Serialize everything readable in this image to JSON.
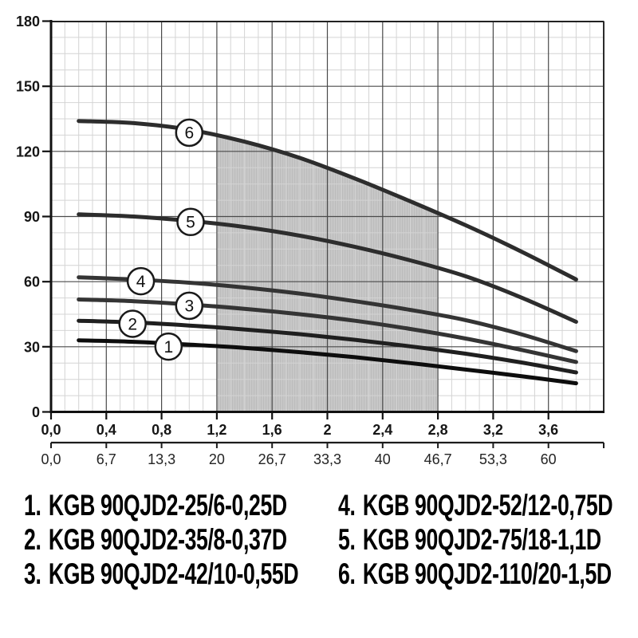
{
  "chart_data": {
    "type": "line",
    "y_axis": {
      "range": [
        0,
        180
      ],
      "major_step": 30,
      "minor_step": 7.5,
      "tick_labels": [
        "0",
        "30",
        "60",
        "90",
        "120",
        "150",
        "180"
      ],
      "tick_values": [
        0,
        30,
        60,
        90,
        120,
        150,
        180
      ]
    },
    "x_axis": {
      "range": [
        0,
        4
      ],
      "major_step": 0.4,
      "minor_step": 0.1,
      "tick_labels": [
        "0,0",
        "0,4",
        "0,8",
        "1,2",
        "1,6",
        "2",
        "2,4",
        "2,8",
        "3,2",
        "3,6"
      ],
      "tick_values": [
        0,
        0.4,
        0.8,
        1.2,
        1.6,
        2.0,
        2.4,
        2.8,
        3.2,
        3.6
      ]
    },
    "x_axis_secondary": {
      "tick_labels": [
        "0,0",
        "6,7",
        "13,3",
        "20",
        "26,7",
        "33,3",
        "40",
        "46,7",
        "53,3",
        "60"
      ],
      "tick_values": [
        0,
        0.4,
        0.8,
        1.2,
        1.6,
        2.0,
        2.4,
        2.8,
        3.2,
        3.6
      ]
    },
    "grid": {
      "major_color": "#4a4a4a",
      "minor_color": "#d4d4d4"
    },
    "shaded_region": {
      "x_from": 1.2,
      "x_to": 2.8,
      "top_boundary": "series 6",
      "fill": "#c8c8c8",
      "hatch": "#bcbcbc"
    },
    "series": [
      {
        "curve": "1",
        "model": "KGB 90QJD2-25/6-0,25D",
        "color": "#0d0d0d",
        "marker": {
          "x": 0.85,
          "y": 30.1
        },
        "points": [
          [
            0.2,
            33
          ],
          [
            0.6,
            32.3
          ],
          [
            1.0,
            31
          ],
          [
            1.4,
            29.5
          ],
          [
            1.8,
            27.5
          ],
          [
            2.2,
            25.2
          ],
          [
            2.6,
            22.5
          ],
          [
            3.0,
            19.5
          ],
          [
            3.4,
            16.5
          ],
          [
            3.8,
            13.2
          ]
        ]
      },
      {
        "curve": "2",
        "model": "KGB 90QJD2-35/8-0,37D",
        "color": "#1f1f1f",
        "marker": {
          "x": 0.59,
          "y": 40.6
        },
        "points": [
          [
            0.2,
            42
          ],
          [
            0.6,
            41.2
          ],
          [
            1.0,
            39.8
          ],
          [
            1.4,
            38
          ],
          [
            1.8,
            35.8
          ],
          [
            2.2,
            33.2
          ],
          [
            2.6,
            30.2
          ],
          [
            3.0,
            26.8
          ],
          [
            3.4,
            22.8
          ],
          [
            3.8,
            18.2
          ]
        ]
      },
      {
        "curve": "3",
        "model": "KGB 90QJD2-42/10-0,55D",
        "color": "#343434",
        "marker": {
          "x": 1.0,
          "y": 48.9
        },
        "points": [
          [
            0.2,
            51.8
          ],
          [
            0.6,
            51
          ],
          [
            1.0,
            49.5
          ],
          [
            1.4,
            47.5
          ],
          [
            1.8,
            45
          ],
          [
            2.2,
            42
          ],
          [
            2.6,
            38.2
          ],
          [
            3.0,
            33.8
          ],
          [
            3.4,
            28.6
          ],
          [
            3.8,
            23
          ]
        ]
      },
      {
        "curve": "4",
        "model": "KGB 90QJD2-52/12-0,75D",
        "color": "#343434",
        "marker": {
          "x": 0.65,
          "y": 60.2
        },
        "points": [
          [
            0.2,
            62
          ],
          [
            0.6,
            61
          ],
          [
            1.0,
            59.5
          ],
          [
            1.4,
            57.3
          ],
          [
            1.8,
            54.5
          ],
          [
            2.2,
            51
          ],
          [
            2.6,
            47
          ],
          [
            3.0,
            42.3
          ],
          [
            3.4,
            35.8
          ],
          [
            3.8,
            28
          ]
        ]
      },
      {
        "curve": "5",
        "model": "KGB 90QJD2-75/18-1,1D",
        "color": "#2d2d2d",
        "marker": {
          "x": 1.01,
          "y": 87.5
        },
        "points": [
          [
            0.2,
            91
          ],
          [
            0.6,
            90
          ],
          [
            1.0,
            88
          ],
          [
            1.4,
            85.2
          ],
          [
            1.8,
            81.2
          ],
          [
            2.2,
            76
          ],
          [
            2.6,
            69.8
          ],
          [
            3.0,
            62.5
          ],
          [
            3.4,
            52.8
          ],
          [
            3.8,
            41.5
          ]
        ]
      },
      {
        "curve": "6",
        "model": "KGB 90QJD2-110/20-1,5D",
        "color": "#2d2d2d",
        "marker": {
          "x": 1.0,
          "y": 128.6
        },
        "points": [
          [
            0.2,
            134
          ],
          [
            0.6,
            133
          ],
          [
            1.0,
            130
          ],
          [
            1.4,
            124.5
          ],
          [
            1.8,
            117
          ],
          [
            2.2,
            107.5
          ],
          [
            2.6,
            97
          ],
          [
            3.0,
            86
          ],
          [
            3.4,
            74
          ],
          [
            3.8,
            61
          ]
        ]
      }
    ]
  },
  "legend": {
    "items": [
      {
        "index": "1.",
        "label": "KGB 90QJD2-25/6-0,25D"
      },
      {
        "index": "2.",
        "label": "KGB 90QJD2-35/8-0,37D"
      },
      {
        "index": "3.",
        "label": "KGB 90QJD2-42/10-0,55D"
      },
      {
        "index": "4.",
        "label": "KGB 90QJD2-52/12-0,75D"
      },
      {
        "index": "5.",
        "label": "KGB 90QJD2-75/18-1,1D"
      },
      {
        "index": "6.",
        "label": "KGB 90QJD2-110/20-1,5D"
      }
    ]
  }
}
